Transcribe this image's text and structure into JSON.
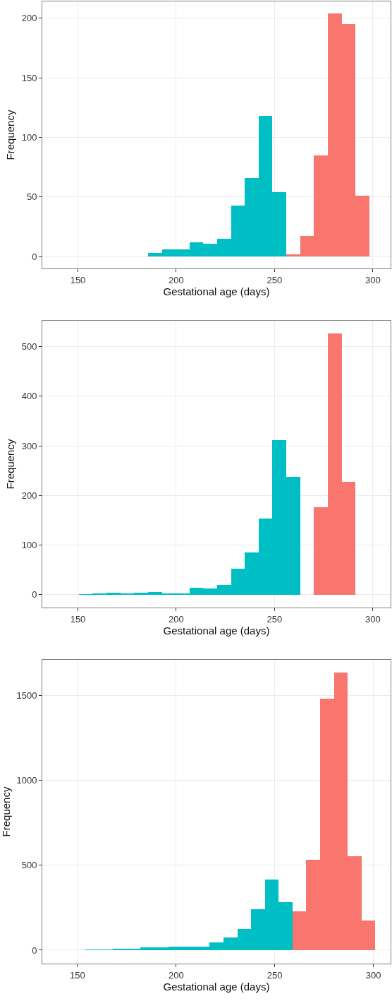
{
  "chart_data": [
    {
      "type": "histogram",
      "xlabel": "Gestational age (days)",
      "ylabel": "Frequency",
      "bins": [
        143.4,
        150.4,
        157.5,
        164.5,
        171.6,
        178.6,
        185.6,
        192.7,
        199.7,
        206.7,
        213.8,
        220.8,
        227.8,
        234.9,
        241.9,
        248.9,
        256.0,
        263.0,
        270.0,
        277.1,
        284.1,
        291.1,
        298.2
      ],
      "series": [
        {
          "color": "#00bfc4",
          "values": [
            0,
            0,
            0,
            0,
            0,
            0,
            3,
            6,
            6,
            12,
            11,
            15,
            43,
            66,
            118,
            54,
            null,
            null,
            null,
            null,
            null,
            null
          ]
        },
        {
          "color": "#f8766d",
          "values": [
            null,
            null,
            null,
            null,
            null,
            null,
            null,
            null,
            null,
            null,
            null,
            null,
            null,
            null,
            null,
            null,
            2,
            17,
            85,
            204,
            195,
            51
          ]
        }
      ],
      "xlim": [
        131.9,
        309
      ],
      "xticks": [
        150,
        200,
        250,
        300
      ],
      "ylim": [
        -10,
        214
      ],
      "yticks": [
        0,
        50,
        100,
        150,
        200
      ],
      "grid": true
    },
    {
      "type": "histogram",
      "xlabel": "Gestational age (days)",
      "ylabel": "Frequency",
      "bins": [
        143.4,
        150.4,
        157.5,
        164.5,
        171.6,
        178.6,
        185.6,
        192.7,
        199.7,
        206.7,
        213.8,
        220.8,
        227.8,
        234.9,
        241.9,
        248.9,
        256.0,
        263.0,
        270.0,
        277.1,
        284.1,
        291.1,
        298.2
      ],
      "series": [
        {
          "color": "#00bfc4",
          "values": [
            0,
            1,
            2,
            4,
            3,
            4,
            5,
            3,
            3,
            14,
            12,
            20,
            52,
            85,
            153,
            312,
            237,
            0,
            null,
            null,
            null,
            null
          ]
        },
        {
          "color": "#f8766d",
          "values": [
            null,
            null,
            null,
            null,
            null,
            null,
            null,
            null,
            null,
            null,
            null,
            null,
            null,
            null,
            null,
            null,
            null,
            null,
            176,
            527,
            228,
            0
          ]
        }
      ],
      "xlim": [
        131.9,
        309
      ],
      "xticks": [
        150,
        200,
        250,
        300
      ],
      "ylim": [
        -26,
        552
      ],
      "yticks": [
        0,
        100,
        200,
        300,
        400,
        500
      ],
      "grid": true
    },
    {
      "type": "histogram",
      "xlabel": "Gestational age (days)",
      "ylabel": "Frequency",
      "bins": [
        140,
        147,
        154,
        161,
        168,
        175,
        182,
        189,
        196,
        203,
        210,
        217,
        224,
        231,
        238,
        245,
        252,
        259,
        266,
        273,
        280,
        287,
        294,
        301
      ],
      "series": [
        {
          "color": "#00bfc4",
          "values": [
            0,
            0,
            3,
            5,
            8,
            10,
            15,
            15,
            20,
            20,
            20,
            45,
            74,
            124,
            242,
            417,
            281,
            null,
            null,
            null,
            null,
            null,
            null
          ]
        },
        {
          "color": "#f8766d",
          "values": [
            null,
            null,
            null,
            null,
            null,
            null,
            null,
            null,
            null,
            null,
            null,
            null,
            null,
            null,
            null,
            null,
            null,
            227,
            533,
            1479,
            1634,
            551,
            175
          ]
        }
      ],
      "xlim": [
        132.2,
        308.7
      ],
      "xticks": [
        150,
        200,
        250,
        300
      ],
      "ylim": [
        -79,
        1708
      ],
      "yticks": [
        0,
        500,
        1000,
        1500
      ],
      "grid": true
    }
  ]
}
